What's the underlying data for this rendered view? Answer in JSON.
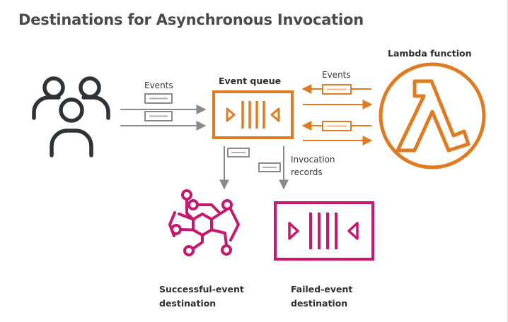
{
  "diagram": {
    "title": "Destinations for Asynchronous Invocation",
    "labels": {
      "events_left": "Events",
      "events_right": "Events",
      "event_queue": "Event queue",
      "lambda_function": "Lambda function",
      "invocation_records_line1": "Invocation",
      "invocation_records_line2": "records",
      "success_line1": "Successful-event",
      "success_line2": "destination",
      "failed_line1": "Failed-event",
      "failed_line2": "destination"
    },
    "icons": {
      "users": "users-icon",
      "event_queue": "queue-icon",
      "lambda": "lambda-icon",
      "success_destination": "event-bus-icon",
      "failed_destination": "queue-icon"
    },
    "colors": {
      "title": "#4a4a4a",
      "queue_orange": "#e07b22",
      "lambda_orange": "#e07b22",
      "destination_pink": "#c7186d",
      "arrow_gray": "#8a8a8a",
      "users_dark": "#2e3338"
    }
  }
}
